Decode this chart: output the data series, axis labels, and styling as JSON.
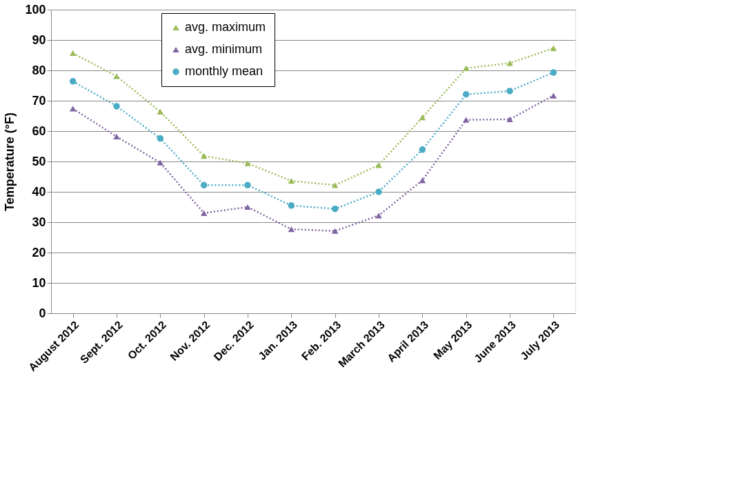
{
  "chart_data": {
    "type": "line",
    "ylabel": "Temperature (°F)",
    "categories": [
      "August 2012",
      "Sept. 2012",
      "Oct. 2012",
      "Nov. 2012",
      "Dec. 2012",
      "Jan. 2013",
      "Feb. 2013",
      "March 2013",
      "April 2013",
      "May 2013",
      "June 2013",
      "July 2013"
    ],
    "series": [
      {
        "name": "avg. maximum",
        "color": "#9bbb59",
        "marker": "triangle",
        "values": [
          85.7,
          78.1,
          66.4,
          51.8,
          49.4,
          43.6,
          42.2,
          48.8,
          64.5,
          80.7,
          82.4,
          87.3
        ]
      },
      {
        "name": "avg. minimum",
        "color": "#8064a2",
        "marker": "triangle",
        "values": [
          67.4,
          58.2,
          49.6,
          33.0,
          35.0,
          27.7,
          27.1,
          32.2,
          43.8,
          63.7,
          63.9,
          71.7
        ]
      },
      {
        "name": "monthly mean",
        "color": "#4bacc6",
        "marker": "circle",
        "values": [
          76.4,
          68.2,
          57.6,
          42.2,
          42.2,
          35.5,
          34.4,
          40.0,
          53.9,
          72.1,
          73.2,
          79.3
        ]
      }
    ],
    "ylim": [
      0,
      100
    ],
    "yticks": [
      0,
      10,
      20,
      30,
      40,
      50,
      60,
      70,
      80,
      90,
      100
    ],
    "grid": "y",
    "legend": "top left",
    "line_style": "dotted"
  }
}
